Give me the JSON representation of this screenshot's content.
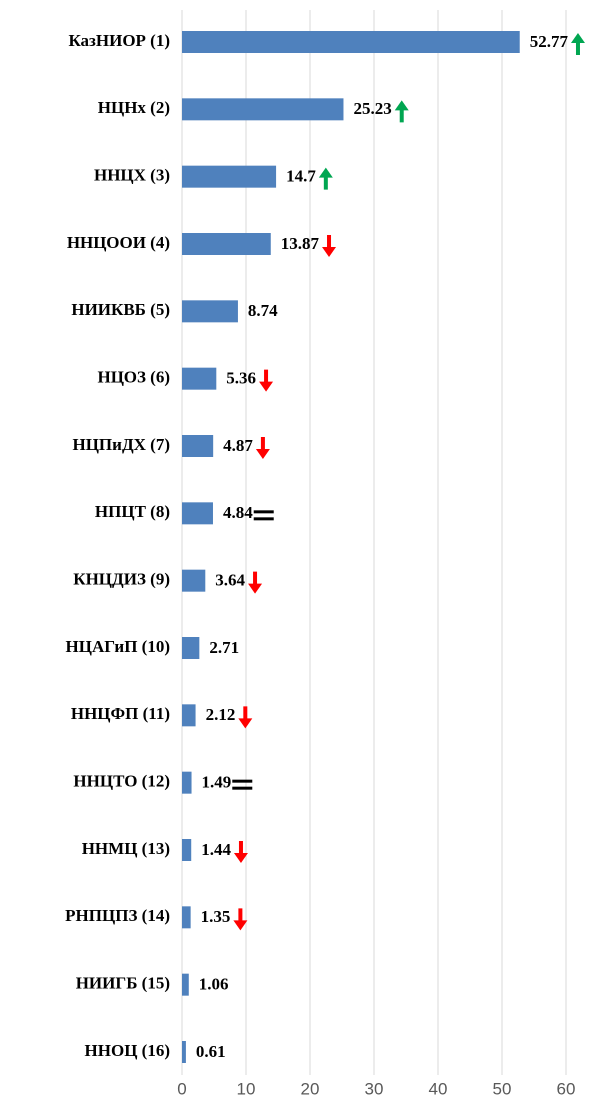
{
  "chart_data": {
    "type": "hbar",
    "categories": [
      "КазНИОР (1)",
      "НЦНх (2)",
      "ННЦХ (3)",
      "ННЦООИ (4)",
      "НИИКВБ (5)",
      "НЦОЗ (6)",
      "НЦПиДХ (7)",
      "НПЦТ (8)",
      "КНЦДИЗ (9)",
      "НЦАГиП (10)",
      "ННЦФП (11)",
      "ННЦТО (12)",
      "ННМЦ (13)",
      "РНПЦПЗ (14)",
      "НИИГБ (15)",
      "ННОЦ (16)"
    ],
    "values": [
      52.77,
      25.23,
      14.7,
      13.87,
      8.74,
      5.36,
      4.87,
      4.84,
      3.64,
      2.71,
      2.12,
      1.49,
      1.44,
      1.35,
      1.06,
      0.61
    ],
    "trend": [
      "up",
      "up",
      "up",
      "down",
      null,
      "down",
      "down",
      "equal",
      "down",
      null,
      "down",
      "equal",
      "down",
      "down",
      null,
      null
    ],
    "color": "#4f81bd",
    "xlim": [
      0,
      60
    ],
    "xticks": [
      0,
      10,
      20,
      30,
      40,
      50,
      60
    ],
    "grid": true
  }
}
